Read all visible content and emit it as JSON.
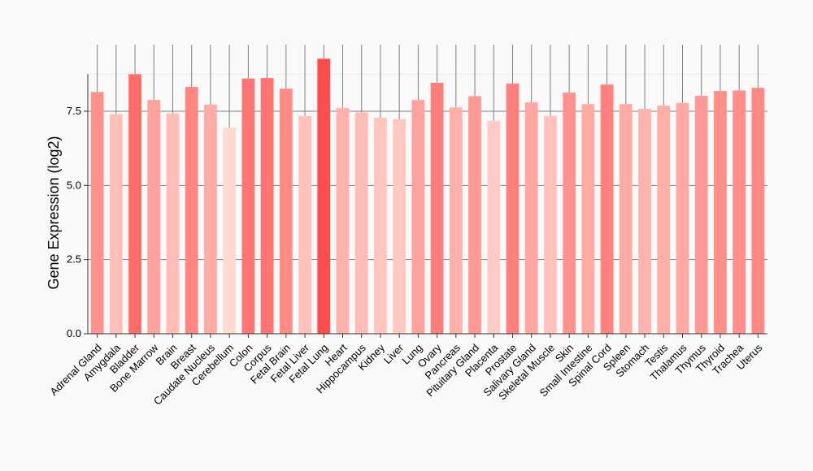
{
  "chart_data": {
    "type": "bar",
    "ylabel": "Gene Expression (log2)",
    "xlabel": "",
    "ylim": [
      0,
      10
    ],
    "yticks": [
      0.0,
      2.5,
      5.0,
      7.5
    ],
    "ytick_labels": [
      "0.0",
      "2.5",
      "5.0",
      "7.5"
    ],
    "grid": "horizontal",
    "categories": [
      "Adrenal Gland",
      "Amygdala",
      "Bladder",
      "Bone Marrow",
      "Brain",
      "Breast",
      "Caudate Nucleus",
      "Cerebellum",
      "Colon",
      "Corpus",
      "Fetal Brain",
      "Fetal Liver",
      "Fetal Lung",
      "Heart",
      "Hippocampus",
      "Kidney",
      "Liver",
      "Lung",
      "Ovary",
      "Pancreas",
      "Pituitary Gland",
      "Placenta",
      "Prostate",
      "Salivary Gland",
      "Skeletal Muscle",
      "Skin",
      "Small Intestine",
      "Spinal Cord",
      "Spleen",
      "Stomach",
      "Testis",
      "Thalamus",
      "Thymus",
      "Thyroid",
      "Trachea",
      "Uterus"
    ],
    "values": [
      8.15,
      7.4,
      8.75,
      7.88,
      7.43,
      8.32,
      7.72,
      6.95,
      8.6,
      8.62,
      8.26,
      7.34,
      9.27,
      7.61,
      7.46,
      7.28,
      7.23,
      7.88,
      8.46,
      7.63,
      8.01,
      7.18,
      8.43,
      7.8,
      7.34,
      8.13,
      7.74,
      8.4,
      7.74,
      7.58,
      7.69,
      7.78,
      8.02,
      8.18,
      8.2,
      8.29
    ],
    "colors": {
      "min": "#ffdad2",
      "max": "#ff4c4c",
      "grid": "#7f7f7f",
      "bar_top_line": "#7f7f7f",
      "background": "#f9f9f9"
    }
  }
}
